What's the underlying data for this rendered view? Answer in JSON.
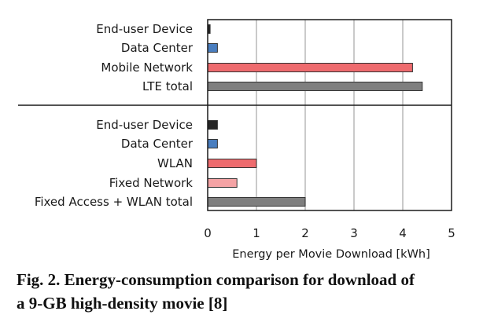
{
  "chart_data": {
    "type": "bar",
    "orientation": "horizontal",
    "xlabel": "Energy per Movie Download [kWh]",
    "xlim": [
      0,
      5
    ],
    "xticks": [
      0,
      1,
      2,
      3,
      4,
      5
    ],
    "grid": true,
    "legend": "none",
    "groups": [
      {
        "name": "LTE",
        "bars": [
          {
            "label": "End-user Device",
            "value": 0.05,
            "color": "#262626"
          },
          {
            "label": "Data Center",
            "value": 0.2,
            "color": "#4a7ebf"
          },
          {
            "label": "Mobile Network",
            "value": 4.2,
            "color": "#ee6b6e"
          },
          {
            "label": "LTE total",
            "value": 4.4,
            "color": "#7f7f7f"
          }
        ]
      },
      {
        "name": "Fixed Access + WLAN",
        "bars": [
          {
            "label": "End-user Device",
            "value": 0.2,
            "color": "#262626"
          },
          {
            "label": "Data Center",
            "value": 0.2,
            "color": "#4a7ebf"
          },
          {
            "label": "WLAN",
            "value": 1.0,
            "color": "#ee6b6e"
          },
          {
            "label": "Fixed Network",
            "value": 0.6,
            "color": "#f4a3a5"
          },
          {
            "label": "Fixed Access + WLAN total",
            "value": 2.0,
            "color": "#7f7f7f"
          }
        ]
      }
    ]
  },
  "caption": {
    "line1": "Fig.  2. Energy-consumption comparison for download of",
    "line2": "a 9-GB high-density movie [8]"
  }
}
